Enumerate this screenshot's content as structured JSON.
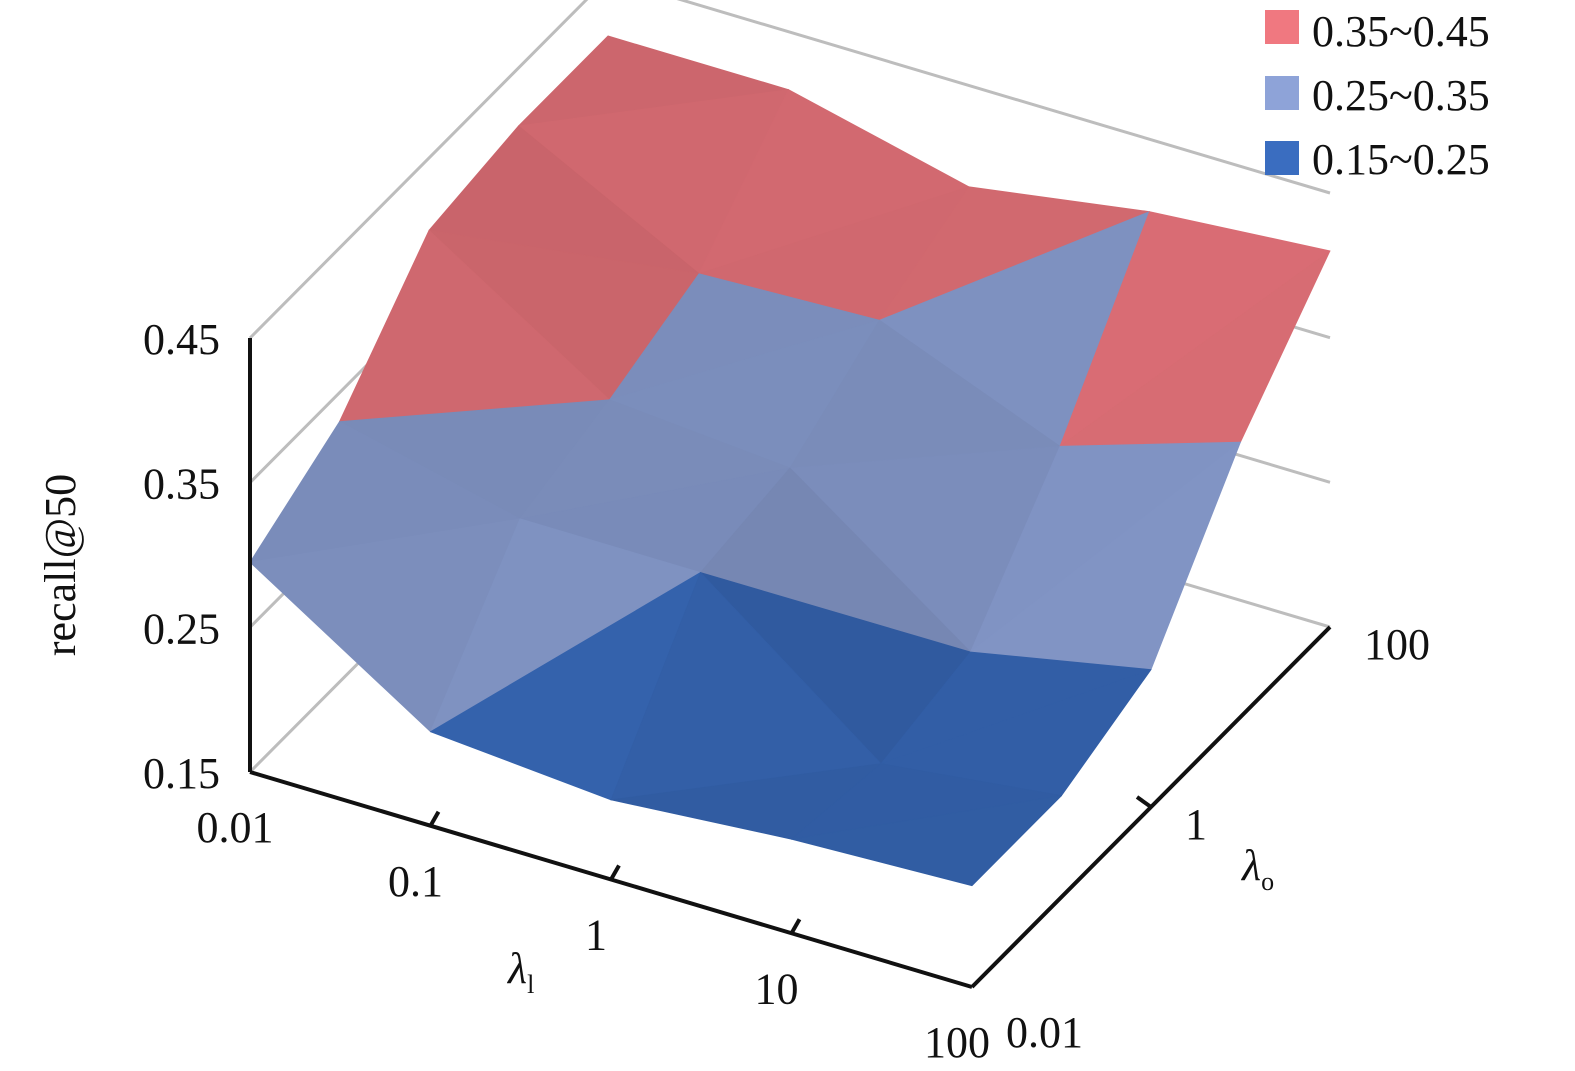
{
  "chart_data": {
    "type": "surface",
    "zlabel": "recall@50",
    "xlabel": "λ",
    "xlabel_sub": "l",
    "ylabel": "λ",
    "ylabel_sub": "o",
    "x_ticks": [
      "0.01",
      "0.1",
      "1",
      "10",
      "100"
    ],
    "y_ticks": [
      "0.01",
      "1",
      "100"
    ],
    "z_ticks": [
      "0.15",
      "0.25",
      "0.35",
      "0.45"
    ],
    "zlim": [
      0.15,
      0.45
    ],
    "grid": true,
    "legend_position": "top-right",
    "legend": [
      {
        "label": "0.35~0.45",
        "color": "#f07880"
      },
      {
        "label": "0.25~0.35",
        "color": "#8ea3d8"
      },
      {
        "label": "0.15~0.25",
        "color": "#3a6dc0"
      }
    ],
    "x_values": [
      "0.01",
      "0.1",
      "1",
      "10",
      "100"
    ],
    "y_values": [
      "0.01",
      "0.1",
      "1",
      "10",
      "100"
    ],
    "z": [
      [
        0.295,
        0.33,
        0.4,
        0.41,
        0.41
      ],
      [
        0.215,
        0.3,
        0.32,
        0.345,
        0.41
      ],
      [
        0.205,
        0.3,
        0.31,
        0.35,
        0.38
      ],
      [
        0.215,
        0.205,
        0.22,
        0.3,
        0.4
      ],
      [
        0.22,
        0.22,
        0.245,
        0.34,
        0.41
      ]
    ]
  }
}
